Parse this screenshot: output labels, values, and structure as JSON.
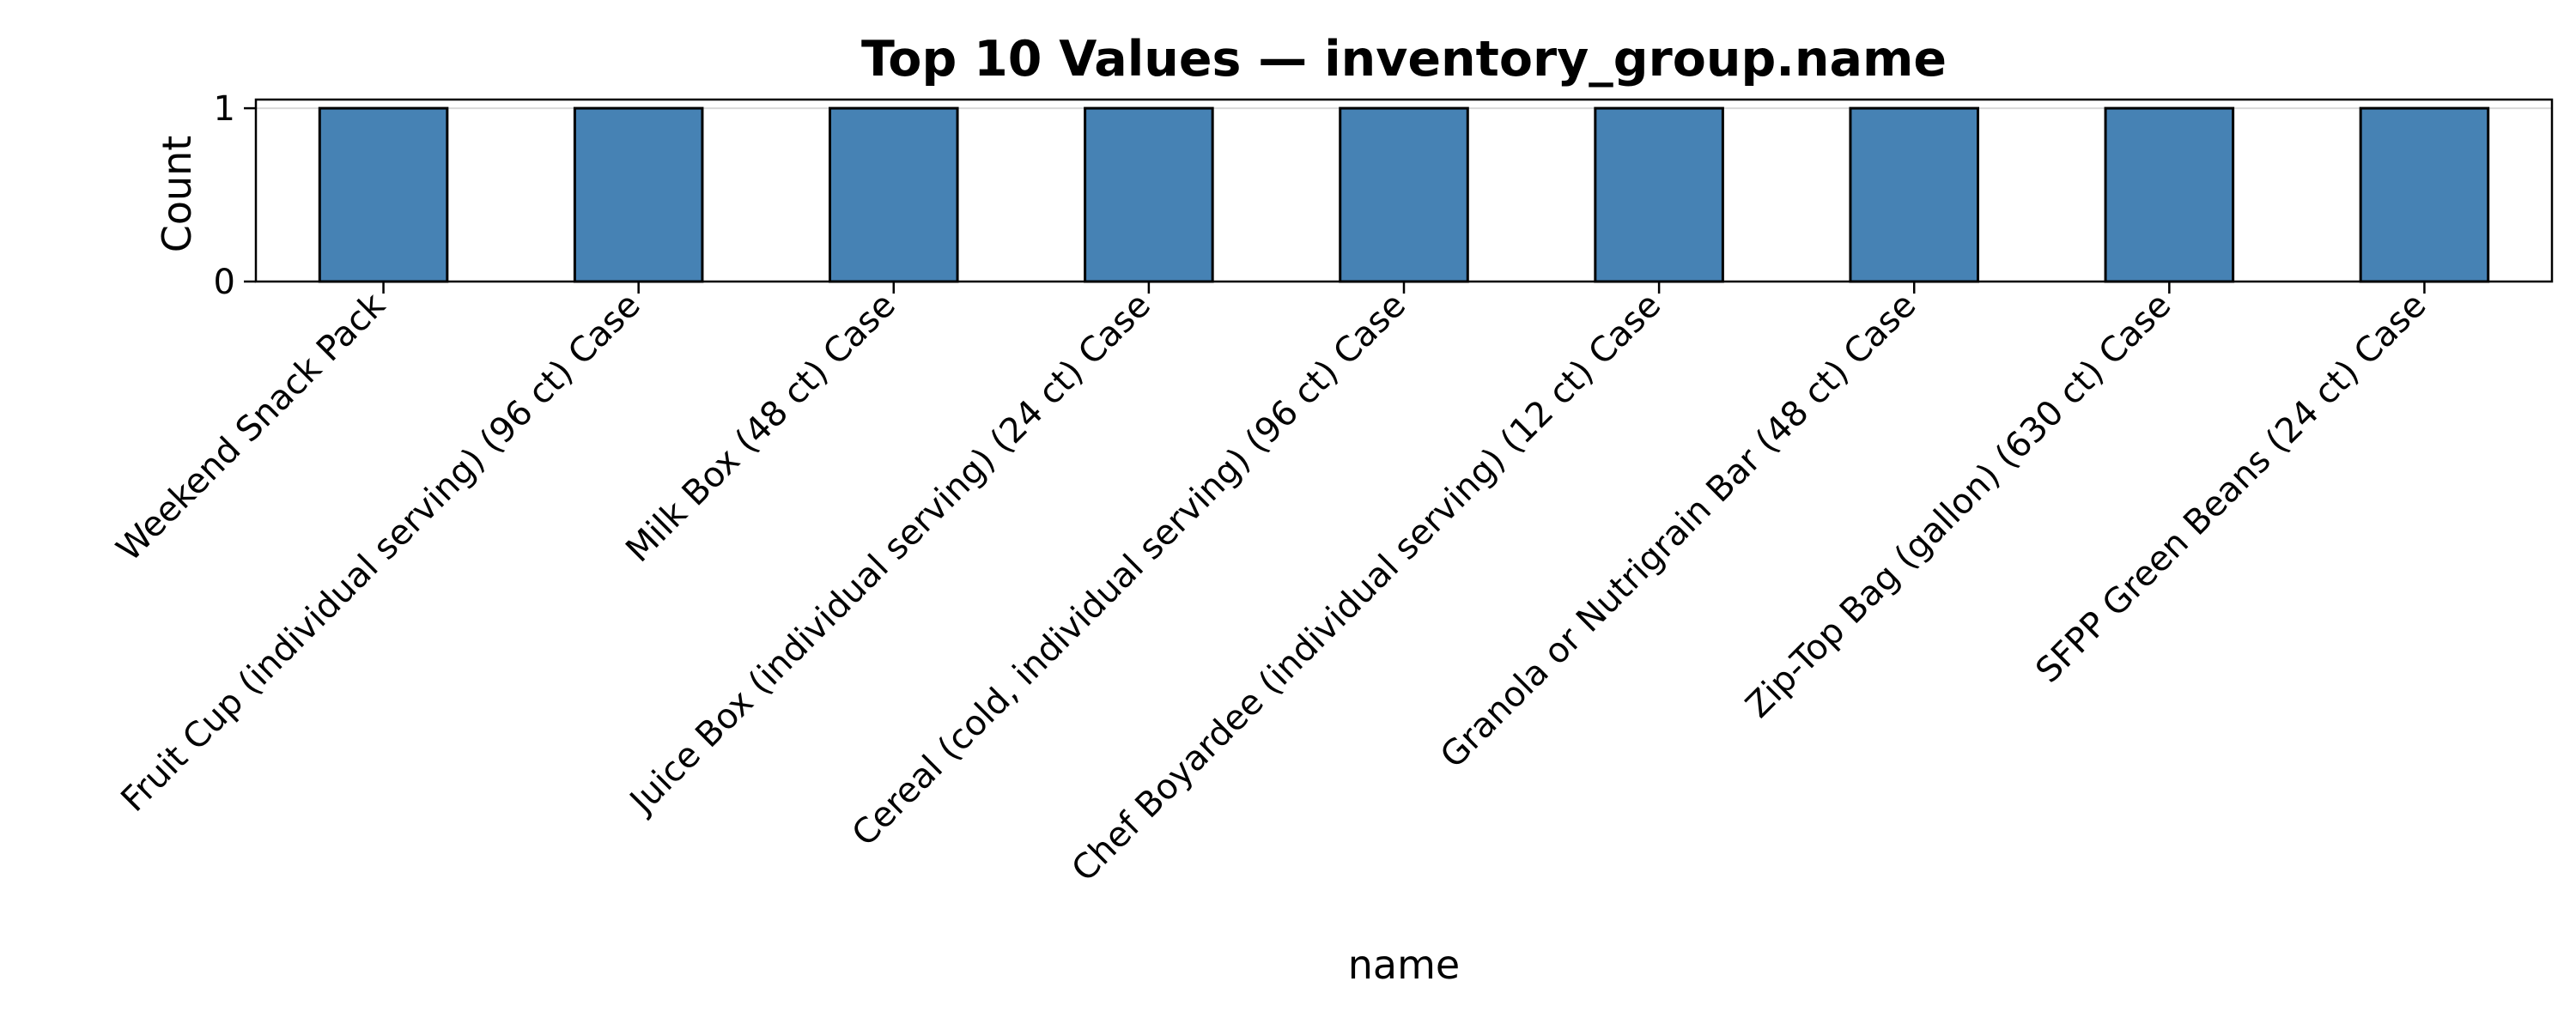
{
  "chart_data": {
    "type": "bar",
    "title": "Top 10 Values — inventory_group.name",
    "xlabel": "name",
    "ylabel": "Count",
    "categories": [
      "Weekend Snack Pack",
      "Fruit Cup (individual serving) (96 ct) Case",
      "Milk Box (48 ct) Case",
      "Juice Box (individual serving) (24 ct) Case",
      "Cereal (cold, individual serving) (96 ct) Case",
      "Chef Boyardee (individual serving) (12 ct) Case",
      "Granola or Nutrigrain Bar (48 ct) Case",
      "Zip-Top Bag (gallon) (630 ct) Case",
      "SFPP Green Beans (24 ct) Case"
    ],
    "values": [
      1,
      1,
      1,
      1,
      1,
      1,
      1,
      1,
      1
    ],
    "ylim": [
      0,
      1.05
    ],
    "yticks": [
      0,
      1
    ],
    "grid": true,
    "colors": {
      "bar": "#4682b4",
      "bar_edge": "#000000",
      "grid": "#d9d9d9",
      "axes": "#000000"
    }
  }
}
